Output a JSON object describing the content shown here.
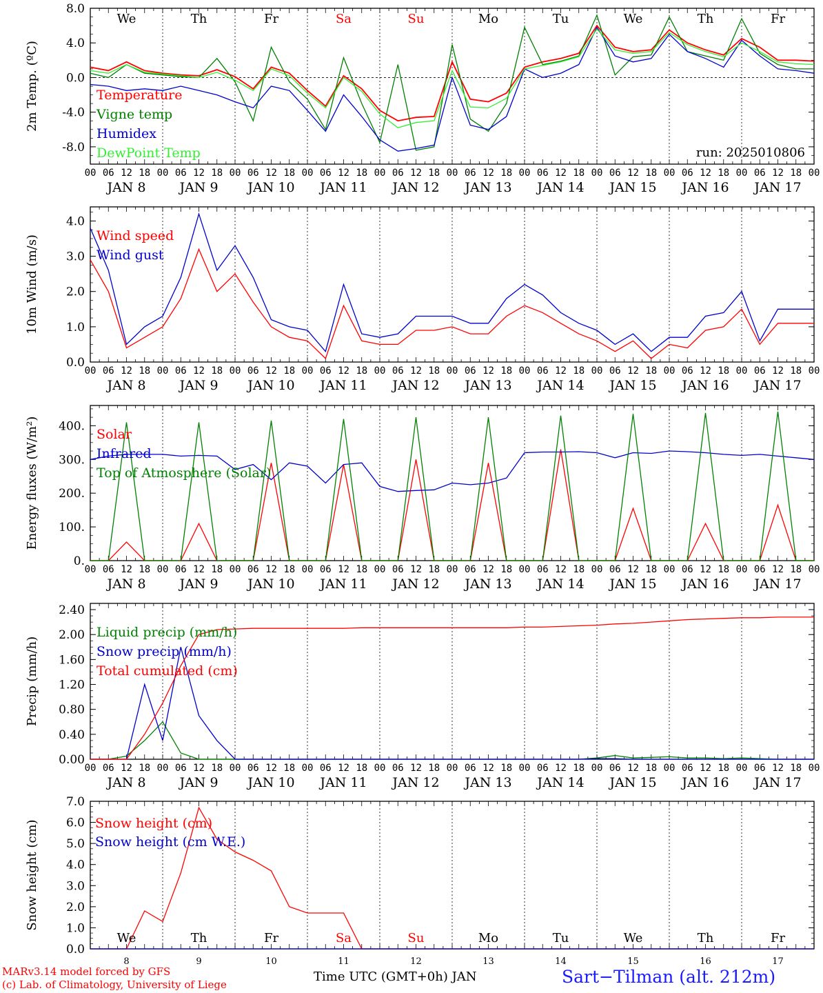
{
  "footer": {
    "model_line": "MARv3.14 model forced by GFS",
    "credit_line": "(c) Lab. of Climatology, University of Liege",
    "xaxis_label": "Time UTC (GMT+0h) JAN",
    "station": "Sart−Tilman (alt. 212m)"
  },
  "colors": {
    "red": "#ff0000",
    "green": "#008000",
    "blue": "#0000cc",
    "lightgreen": "#33ee33",
    "weekend": "#ff0000"
  },
  "days": {
    "weekdays": [
      "We",
      "Th",
      "Fr",
      "Sa",
      "Su",
      "Mo",
      "Tu",
      "We",
      "Th",
      "Fr"
    ],
    "weekend_flags": [
      false,
      false,
      false,
      true,
      true,
      false,
      false,
      false,
      false,
      false
    ],
    "dates": [
      "JAN  8",
      "JAN  9",
      "JAN 10",
      "JAN 11",
      "JAN 12",
      "JAN 13",
      "JAN 14",
      "JAN 15",
      "JAN 16",
      "JAN 17"
    ],
    "bottom_dates": [
      "8",
      "9",
      "10",
      "11",
      "12",
      "13",
      "14",
      "15",
      "16",
      "17"
    ],
    "hour_ticks": [
      "00",
      "06",
      "12",
      "18"
    ],
    "end_tick": "00"
  },
  "chart_data": [
    {
      "type": "line",
      "ylabel": "2m Temp. (ºC)",
      "ylim": [
        -10,
        8
      ],
      "yticks": [
        "8.0",
        "4.0",
        "0.0",
        "-4.0",
        "-8.0"
      ],
      "ytick_values": [
        8,
        4,
        0,
        -4,
        -8
      ],
      "zero_line": true,
      "annotation": "run: 2025010806",
      "x_hours": [
        0,
        6,
        12,
        18,
        24,
        30,
        36,
        42,
        48,
        54,
        60,
        66,
        72,
        78,
        84,
        90,
        96,
        102,
        108,
        114,
        120,
        126,
        132,
        138,
        144,
        150,
        156,
        162,
        168,
        174,
        180,
        186,
        192,
        198,
        204,
        210,
        216,
        222,
        228,
        234,
        240
      ],
      "series": [
        {
          "name": "Temperature",
          "color": "#ff0000",
          "values": [
            1.2,
            0.8,
            1.8,
            0.8,
            0.5,
            0.3,
            0.2,
            0.9,
            0.1,
            -1.3,
            1.2,
            0.5,
            -1.5,
            -3.3,
            0.2,
            -1.3,
            -3.8,
            -5.0,
            -4.6,
            -4.5,
            1.8,
            -2.5,
            -2.8,
            -1.8,
            1.2,
            1.8,
            2.2,
            2.8,
            6.0,
            3.5,
            3.0,
            3.2,
            5.5,
            4.0,
            3.2,
            2.6,
            4.5,
            3.5,
            2.0,
            2.0,
            1.9
          ]
        },
        {
          "name": "Vigne temp",
          "color": "#008000",
          "values": [
            0.5,
            0.0,
            1.5,
            0.5,
            0.3,
            0.1,
            0.0,
            2.2,
            -0.5,
            -5.0,
            3.5,
            -0.5,
            -2.5,
            -6.0,
            2.3,
            -3.0,
            -7.5,
            1.5,
            -8.4,
            -8.0,
            3.8,
            -4.8,
            -6.2,
            -3.0,
            5.8,
            1.5,
            1.9,
            2.5,
            7.2,
            0.3,
            2.4,
            2.6,
            7.0,
            3.0,
            2.5,
            2.0,
            6.8,
            2.8,
            1.5,
            1.0,
            1.0
          ]
        },
        {
          "name": "Humidex",
          "color": "#0000cc",
          "values": [
            -0.8,
            -1.0,
            -1.5,
            -1.3,
            -1.5,
            -1.0,
            -1.5,
            -2.0,
            -2.8,
            -3.5,
            -1.0,
            -1.5,
            -3.8,
            -6.2,
            -2.0,
            -4.5,
            -7.2,
            -8.5,
            -8.2,
            -7.8,
            0.0,
            -5.5,
            -6.0,
            -4.5,
            1.0,
            0.0,
            0.5,
            1.5,
            5.8,
            2.5,
            1.8,
            2.2,
            5.0,
            3.0,
            2.2,
            1.2,
            4.3,
            2.5,
            1.0,
            0.8,
            0.5
          ]
        },
        {
          "name": "DewPoint Temp",
          "color": "#33ee33",
          "values": [
            0.8,
            0.5,
            1.5,
            0.6,
            0.4,
            0.2,
            0.0,
            0.6,
            -0.3,
            -1.5,
            1.0,
            0.2,
            -1.8,
            -3.5,
            0.0,
            -1.6,
            -4.2,
            -5.8,
            -5.2,
            -5.0,
            0.8,
            -3.4,
            -3.5,
            -2.4,
            1.0,
            1.4,
            1.8,
            2.4,
            5.6,
            3.2,
            2.8,
            3.0,
            5.2,
            3.8,
            3.0,
            2.4,
            4.0,
            3.0,
            1.8,
            1.6,
            1.5
          ]
        }
      ]
    },
    {
      "type": "line",
      "ylabel": "10m Wind (m/s)",
      "ylim": [
        0,
        4.4
      ],
      "yticks": [
        "4.0",
        "3.0",
        "2.0",
        "1.0",
        "0.0"
      ],
      "ytick_values": [
        4,
        3,
        2,
        1,
        0
      ],
      "x_hours": [
        0,
        6,
        12,
        18,
        24,
        30,
        36,
        42,
        48,
        54,
        60,
        66,
        72,
        78,
        84,
        90,
        96,
        102,
        108,
        114,
        120,
        126,
        132,
        138,
        144,
        150,
        156,
        162,
        168,
        174,
        180,
        186,
        192,
        198,
        204,
        210,
        216,
        222,
        228,
        234,
        240
      ],
      "series": [
        {
          "name": "Wind speed",
          "color": "#ff0000",
          "values": [
            2.9,
            2.0,
            0.4,
            0.7,
            1.0,
            1.8,
            3.2,
            2.0,
            2.5,
            1.7,
            1.0,
            0.7,
            0.6,
            0.1,
            1.6,
            0.6,
            0.5,
            0.5,
            0.9,
            0.9,
            1.0,
            0.8,
            0.8,
            1.3,
            1.6,
            1.4,
            1.1,
            0.8,
            0.6,
            0.3,
            0.6,
            0.1,
            0.5,
            0.4,
            0.9,
            1.0,
            1.5,
            0.5,
            1.1,
            1.1,
            1.1
          ]
        },
        {
          "name": "Wind gust",
          "color": "#0000cc",
          "values": [
            3.8,
            2.6,
            0.5,
            1.0,
            1.3,
            2.4,
            4.2,
            2.6,
            3.3,
            2.4,
            1.2,
            1.0,
            0.9,
            0.3,
            2.2,
            0.8,
            0.7,
            0.8,
            1.3,
            1.3,
            1.3,
            1.1,
            1.1,
            1.8,
            2.2,
            1.9,
            1.4,
            1.1,
            0.9,
            0.5,
            0.8,
            0.3,
            0.7,
            0.7,
            1.3,
            1.4,
            2.0,
            0.6,
            1.5,
            1.5,
            1.5
          ]
        }
      ]
    },
    {
      "type": "line",
      "ylabel": "Energy fluxes (W/m²)",
      "ylim": [
        0,
        460
      ],
      "yticks": [
        "400.",
        "300.",
        "200.",
        "100.",
        "0."
      ],
      "ytick_values": [
        400,
        300,
        200,
        100,
        0
      ],
      "x_hours": [
        0,
        6,
        12,
        18,
        24,
        30,
        36,
        42,
        48,
        54,
        60,
        66,
        72,
        78,
        84,
        90,
        96,
        102,
        108,
        114,
        120,
        126,
        132,
        138,
        144,
        150,
        156,
        162,
        168,
        174,
        180,
        186,
        192,
        198,
        204,
        210,
        216,
        222,
        228,
        234,
        240
      ],
      "series": [
        {
          "name": "Solar",
          "color": "#ff0000",
          "values": [
            0,
            0,
            55,
            0,
            0,
            0,
            110,
            0,
            0,
            0,
            290,
            0,
            0,
            0,
            285,
            0,
            0,
            0,
            300,
            0,
            0,
            0,
            290,
            0,
            0,
            0,
            330,
            0,
            0,
            0,
            155,
            0,
            0,
            0,
            110,
            0,
            0,
            0,
            165,
            0,
            0
          ]
        },
        {
          "name": "Infrared",
          "color": "#0000cc",
          "values": [
            300,
            310,
            315,
            315,
            315,
            310,
            312,
            310,
            270,
            285,
            240,
            290,
            280,
            230,
            285,
            290,
            220,
            205,
            208,
            210,
            230,
            225,
            230,
            245,
            320,
            322,
            322,
            323,
            320,
            305,
            320,
            318,
            325,
            323,
            320,
            315,
            312,
            315,
            310,
            305,
            300
          ]
        },
        {
          "name": "Top of Atmosphere (Solar)",
          "color": "#008000",
          "values": [
            0,
            0,
            410,
            0,
            0,
            0,
            410,
            0,
            0,
            0,
            415,
            0,
            0,
            0,
            420,
            0,
            0,
            0,
            425,
            0,
            0,
            0,
            425,
            0,
            0,
            0,
            430,
            0,
            0,
            0,
            435,
            0,
            0,
            0,
            438,
            0,
            0,
            0,
            442,
            0,
            0
          ]
        }
      ]
    },
    {
      "type": "line",
      "ylabel": "Precip (mm/h)",
      "ylim": [
        0,
        2.5
      ],
      "yticks": [
        "2.40",
        "2.00",
        "1.60",
        "1.20",
        "0.80",
        "0.40",
        "0.00"
      ],
      "ytick_values": [
        2.4,
        2.0,
        1.6,
        1.2,
        0.8,
        0.4,
        0.0
      ],
      "x_hours": [
        0,
        6,
        12,
        18,
        24,
        30,
        36,
        42,
        48,
        54,
        60,
        66,
        72,
        78,
        84,
        90,
        96,
        102,
        108,
        114,
        120,
        126,
        132,
        138,
        144,
        150,
        156,
        162,
        168,
        174,
        180,
        186,
        192,
        198,
        204,
        210,
        216,
        222,
        228,
        234,
        240
      ],
      "series": [
        {
          "name": "Liquid precip (mm/h)",
          "color": "#008000",
          "values": [
            0,
            0,
            0.05,
            0.3,
            0.6,
            0.1,
            0,
            0,
            0,
            0,
            0,
            0,
            0,
            0,
            0,
            0,
            0,
            0,
            0,
            0,
            0,
            0,
            0,
            0,
            0,
            0,
            0,
            0,
            0.02,
            0.06,
            0.02,
            0.03,
            0.04,
            0.02,
            0.02,
            0.01,
            0.02,
            0.01,
            0,
            0,
            0
          ]
        },
        {
          "name": "Snow precip (mm/h)",
          "color": "#0000cc",
          "values": [
            0,
            0,
            0,
            1.2,
            0.3,
            1.8,
            0.7,
            0.3,
            0,
            0,
            0,
            0,
            0,
            0,
            0,
            0,
            0,
            0,
            0,
            0,
            0,
            0,
            0,
            0,
            0,
            0,
            0,
            0,
            0.01,
            0.01,
            0,
            0,
            0,
            0,
            0,
            0,
            0,
            0,
            0,
            0,
            0
          ]
        },
        {
          "name": "Total cumulated (cm)",
          "color": "#ff0000",
          "values": [
            0,
            0,
            0,
            0.4,
            0.9,
            1.5,
            2.0,
            2.08,
            2.09,
            2.1,
            2.1,
            2.1,
            2.1,
            2.1,
            2.1,
            2.11,
            2.11,
            2.11,
            2.11,
            2.11,
            2.11,
            2.11,
            2.11,
            2.11,
            2.12,
            2.12,
            2.13,
            2.14,
            2.15,
            2.17,
            2.18,
            2.2,
            2.22,
            2.24,
            2.25,
            2.26,
            2.27,
            2.27,
            2.28,
            2.28,
            2.28
          ]
        }
      ]
    },
    {
      "type": "line",
      "ylabel": "Snow height (cm)",
      "ylim": [
        0,
        7
      ],
      "yticks": [
        "7.0",
        "6.0",
        "5.0",
        "4.0",
        "3.0",
        "2.0",
        "1.0",
        "0.0"
      ],
      "ytick_values": [
        7,
        6,
        5,
        4,
        3,
        2,
        1,
        0
      ],
      "x_hours": [
        0,
        6,
        12,
        18,
        24,
        30,
        36,
        42,
        48,
        54,
        60,
        66,
        72,
        78,
        84,
        90,
        96,
        102,
        108,
        114,
        120,
        126,
        132,
        138,
        144,
        150,
        156,
        162,
        168,
        174,
        180,
        186,
        192,
        198,
        204,
        210,
        216,
        222,
        228,
        234,
        240
      ],
      "series": [
        {
          "name": "Snow height (cm)",
          "color": "#ff0000",
          "values": [
            0,
            0,
            0,
            1.8,
            1.3,
            3.6,
            6.7,
            5.2,
            4.6,
            4.2,
            3.7,
            2.0,
            1.7,
            1.7,
            1.7,
            0,
            0,
            0,
            0,
            0,
            0,
            0,
            0,
            0,
            0,
            0,
            0,
            0,
            0,
            0,
            0,
            0,
            0,
            0,
            0,
            0,
            0,
            0,
            0,
            0,
            0
          ]
        },
        {
          "name": "Snow height (cm W.E.)",
          "color": "#0000cc",
          "values": [
            0,
            0,
            0,
            0,
            0,
            0,
            0,
            0,
            0,
            0,
            0,
            0,
            0,
            0,
            0,
            0,
            0,
            0,
            0,
            0,
            0,
            0,
            0,
            0,
            0,
            0,
            0,
            0,
            0,
            0,
            0,
            0,
            0,
            0,
            0,
            0,
            0,
            0,
            0,
            0,
            0
          ]
        }
      ]
    }
  ]
}
